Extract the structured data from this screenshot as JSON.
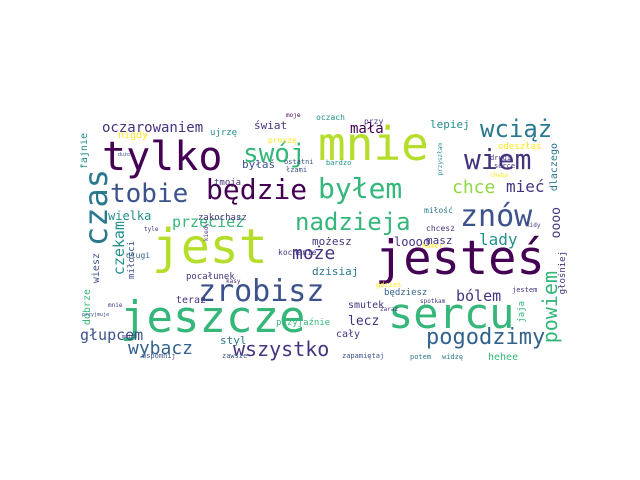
{
  "words": {
    "jest": "jest",
    "jestes": "jesteś",
    "mnie": "mnie",
    "jeszcze": "jeszcze",
    "sercu": "sercu",
    "tylko": "tylko",
    "zrobisz": "zrobisz",
    "czas": "czas",
    "bedzie": "będzie",
    "bylem": "byłem",
    "znow": "znów",
    "wiem": "wiem",
    "swoj": "swój",
    "tobie": "tobie",
    "nadzieja": "nadzieja",
    "wciaz": "wciąż",
    "pogodzimy": "pogodzimy",
    "powiem": "powiem",
    "wszystko": "wszystko",
    "wybacz": "wybacz",
    "moze": "może",
    "przeciez": "przecież",
    "chce": "chce",
    "miec": "mieć",
    "lady": "lady",
    "czekam": "czekam",
    "glupcem": "głupcem",
    "bolem": "bólem",
    "mala": "mała",
    "oczarowaniem": "oczarowaniem",
    "lecz": "lecz",
    "oooo": "oooo",
    "loooo": "loooo",
    "lepiej": "lepiej",
    "swiat": "świat",
    "bylas": "byłaś",
    "wielka": "wielka",
    "dzisiaj": "dzisiaj",
    "mozesz": "możesz",
    "masz": "masz",
    "teraz": "teraz",
    "smutek": "smutek",
    "caly": "cały",
    "styl": "styl",
    "hehee": "hehee",
    "dobrze": "dobrze",
    "fajnie": "fajnie",
    "nigdy": "nigdy",
    "ujrze": "ujrzę",
    "tmoja": "tmoja",
    "wiesz": "wiesz",
    "pocalunek": "pocałunek",
    "zakochasz": "zakochasz",
    "bedziesz": "będziesz",
    "przyjaznie": "przyjaźnie",
    "dlaczego": "dlaczego",
    "odeszlas": "odeszłaś",
    "tych": "tych",
    "glosniej": "głośniej",
    "jaja": "jaja",
    "milosci": "miłości",
    "milosc": "miłość",
    "kochanie": "kochanie",
    "dlugi": "długi",
    "prosze": "proszę",
    "oczach": "oczach",
    "przy": "przy",
    "moje": "moje",
    "ostatni": "ostatni",
    "lzami": "łzami",
    "bardzo": "bardzo",
    "chcesz": "chcesz",
    "serce": "serce",
    "drugi": "drugi",
    "jestem": "jestem",
    "potem": "potem",
    "widze": "widzę",
    "zapamietaj": "zapamiętaj",
    "zawsze": "zawsze",
    "wspomnij": "wspomnij",
    "gdzies": "gdzieś",
    "humor": "humor",
    "kiedy": "kiedy",
    "chyba": "chyba",
    "spotkam": "spotkam",
    "przyszlam": "przyszłam",
    "kasy": "kasy",
    "duzo": "dużo",
    "tyle": "tyle",
    "moich": "moich",
    "przyjmuje": "przyjmuje",
    "kidy": "kidy",
    "mnie2": "mnie",
    "zaraz": "zaraz"
  },
  "colors": {
    "dark_purple": "#440154",
    "purple": "#46337f",
    "indigo": "#3b528b",
    "blue": "#33638d",
    "teal": "#21908c",
    "teal2": "#2a788e",
    "green": "#35b779",
    "lime": "#8fd744",
    "yellowgreen": "#b5de2b",
    "yellow": "#fde725"
  }
}
